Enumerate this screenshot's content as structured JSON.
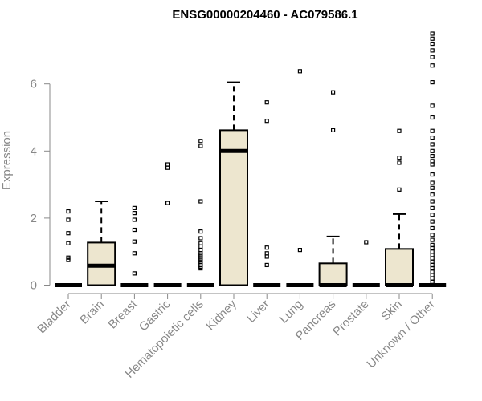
{
  "chart_data": {
    "type": "boxplot",
    "title": "ENSG00000204460 - AC079586.1",
    "ylabel": "Expression",
    "xlabel": "",
    "ylim": [
      0,
      7.5
    ],
    "yticks": [
      0,
      2,
      4,
      6
    ],
    "grid": false,
    "legend": "none",
    "box_fill": "#ede6cf",
    "axis_color": "#888888",
    "categories": [
      "Bladder",
      "Brain",
      "Breast",
      "Gastric",
      "Hematopoietic cells",
      "Kidney",
      "Liver",
      "Lung",
      "Pancreas",
      "Prostate",
      "Skin",
      "Unknown / Other"
    ],
    "boxes": [
      {
        "min": 0,
        "q1": 0,
        "median": 0,
        "q3": 0,
        "max": 0,
        "outliers": [
          0.75,
          0.82,
          1.25,
          1.55,
          1.95,
          2.2
        ]
      },
      {
        "min": 0,
        "q1": 0,
        "median": 0.58,
        "q3": 1.27,
        "max": 2.5,
        "outliers": []
      },
      {
        "min": 0,
        "q1": 0,
        "median": 0,
        "q3": 0,
        "max": 0,
        "outliers": [
          0.35,
          0.95,
          1.3,
          1.65,
          1.95,
          2.15,
          2.3
        ]
      },
      {
        "min": 0,
        "q1": 0,
        "median": 0,
        "q3": 0,
        "max": 0,
        "outliers": [
          2.45,
          3.5,
          3.6
        ]
      },
      {
        "min": 0,
        "q1": 0,
        "median": 0,
        "q3": 0,
        "max": 0,
        "outliers": [
          0.5,
          0.55,
          0.6,
          0.65,
          0.7,
          0.75,
          0.8,
          0.85,
          0.9,
          0.95,
          1.05,
          1.15,
          1.25,
          1.4,
          1.6,
          2.5,
          4.15,
          4.3
        ]
      },
      {
        "min": 0,
        "q1": 0,
        "median": 4,
        "q3": 4.62,
        "max": 6.05,
        "outliers": []
      },
      {
        "min": 0,
        "q1": 0,
        "median": 0,
        "q3": 0,
        "max": 0,
        "outliers": [
          0.6,
          0.85,
          0.95,
          1.12,
          4.9,
          5.45
        ]
      },
      {
        "min": 0,
        "q1": 0,
        "median": 0,
        "q3": 0,
        "max": 0,
        "outliers": [
          1.05,
          6.38
        ]
      },
      {
        "min": 0,
        "q1": 0,
        "median": 0,
        "q3": 0.65,
        "max": 1.45,
        "outliers": [
          4.62,
          5.75
        ]
      },
      {
        "min": 0,
        "q1": 0,
        "median": 0,
        "q3": 0,
        "max": 0,
        "outliers": [
          1.28
        ]
      },
      {
        "min": 0,
        "q1": 0,
        "median": 0,
        "q3": 1.08,
        "max": 2.12,
        "outliers": [
          2.85,
          3.65,
          3.8,
          4.6
        ]
      },
      {
        "min": 0,
        "q1": 0,
        "median": 0,
        "q3": 0,
        "max": 0,
        "outliers": [
          0.1,
          0.2,
          0.3,
          0.4,
          0.5,
          0.6,
          0.7,
          0.8,
          0.9,
          1.0,
          1.1,
          1.2,
          1.35,
          1.5,
          1.7,
          1.9,
          2.1,
          2.3,
          2.5,
          2.7,
          2.9,
          3.05,
          3.3,
          3.6,
          3.7,
          3.85,
          4.0,
          4.2,
          4.4,
          4.6,
          5.0,
          5.35,
          6.05,
          6.55,
          6.8,
          7.0,
          7.2,
          7.35,
          7.5
        ]
      }
    ]
  }
}
